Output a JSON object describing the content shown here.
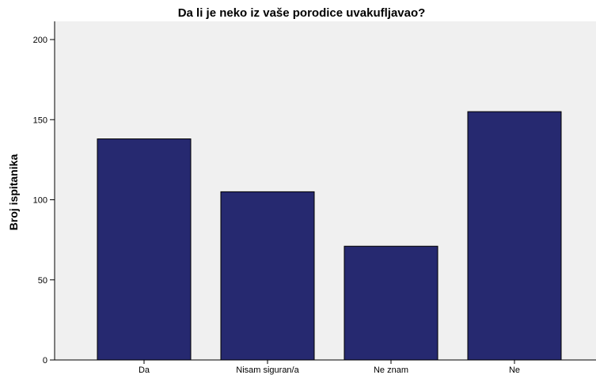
{
  "chart_data": {
    "type": "bar",
    "title": "Da li je neko iz vaše porodice uvakufljavao?",
    "xlabel": "",
    "ylabel": "Broj ispitanika",
    "categories": [
      "Da",
      "Nisam siguran/a",
      "Ne znam",
      "Ne"
    ],
    "values": [
      138,
      105,
      71,
      155
    ],
    "ylim": [
      0,
      210
    ],
    "yticks": [
      0,
      50,
      100,
      150,
      200
    ],
    "grid": false,
    "legend": "none",
    "colors": {
      "bar_fill": "#262970",
      "bar_stroke": "#000000",
      "plot_background": "#f0f0f0",
      "axis": "#000000"
    }
  }
}
